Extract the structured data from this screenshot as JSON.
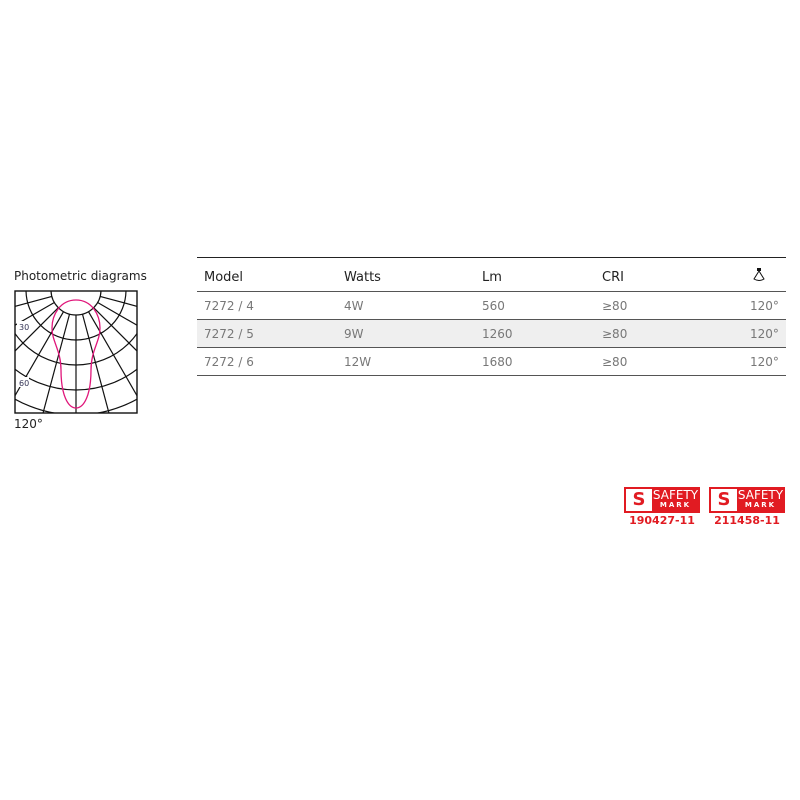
{
  "photometric": {
    "title": "Photometric diagrams",
    "labels": [
      "30",
      "60"
    ],
    "beam": "120°",
    "curve_color": "#e0167a"
  },
  "table": {
    "headers": [
      "Model",
      "Watts",
      "Lm",
      "CRI"
    ],
    "beam_icon": "beam-angle-icon",
    "rows": [
      [
        "7272 / 4",
        "4W",
        "560",
        "≥80",
        "120°"
      ],
      [
        "7272 / 5",
        "9W",
        "1260",
        "≥80",
        "120°"
      ],
      [
        "7272 / 6",
        "12W",
        "1680",
        "≥80",
        "120°"
      ]
    ]
  },
  "safety_marks": [
    {
      "line1": "SAFETY",
      "line2": "MARK",
      "number": "190427-11"
    },
    {
      "line1": "SAFETY",
      "line2": "MARK",
      "number": "211458-11"
    }
  ]
}
